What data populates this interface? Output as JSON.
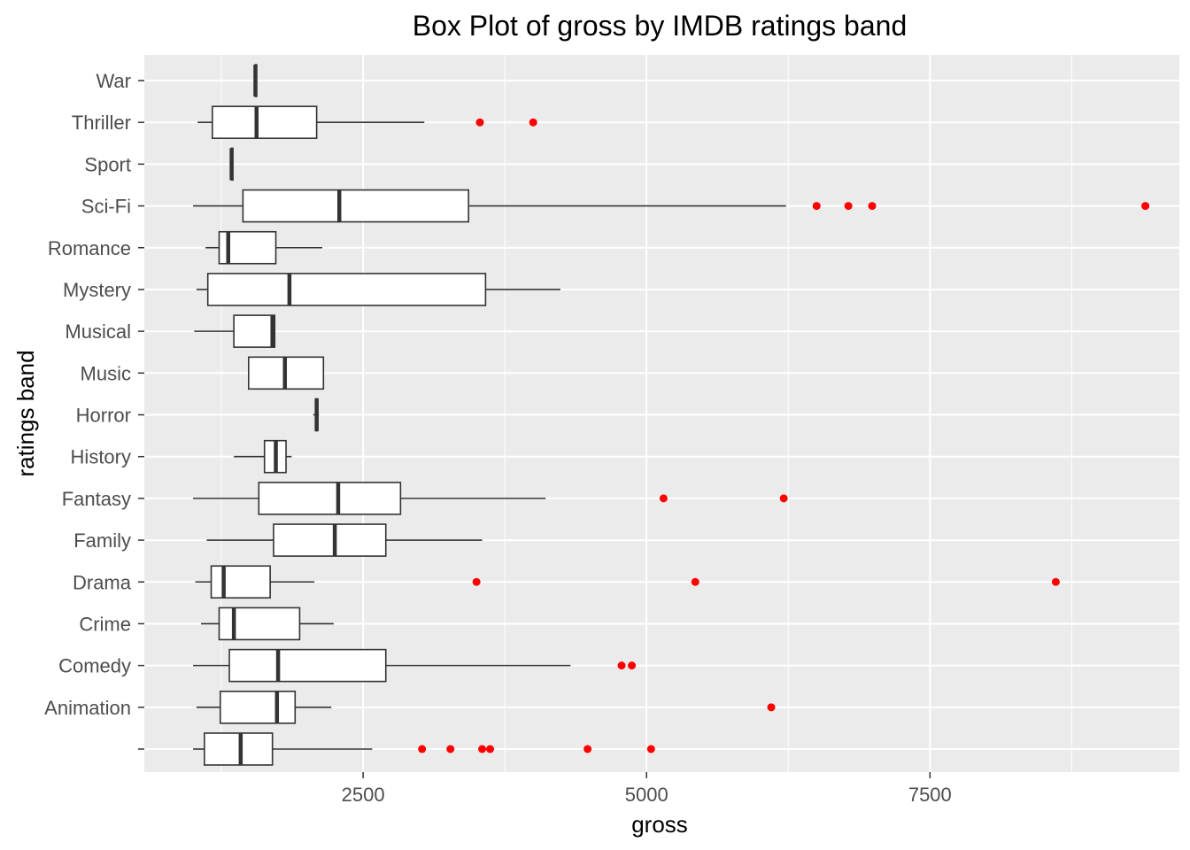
{
  "chart_data": {
    "type": "boxplot",
    "orientation": "horizontal",
    "title": "Box Plot of gross by IMDB ratings band",
    "xlabel": "gross",
    "ylabel": "ratings band",
    "xlim": [
      570,
      9700
    ],
    "x_ticks": [
      2500,
      5000,
      7500
    ],
    "x_tick_labels": [
      "2500",
      "5000",
      "7500"
    ],
    "grid": true,
    "background": "#ebebeb",
    "grid_color": "#ffffff",
    "box_color": "#333333",
    "box_fill": "#ffffff",
    "outlier_color": "#ff0000",
    "categories": [
      "",
      "Animation",
      "Comedy",
      "Crime",
      "Drama",
      "Family",
      "Fantasy",
      "History",
      "Horror",
      "Music",
      "Musical",
      "Mystery",
      "Romance",
      "Sci-Fi",
      "Sport",
      "Thriller",
      "War"
    ],
    "boxes": [
      {
        "category": "",
        "whisker_low": 1000,
        "q1": 1100,
        "median": 1420,
        "q3": 1700,
        "whisker_high": 2580,
        "outliers": [
          3020,
          3270,
          3550,
          3620,
          4480,
          5040
        ]
      },
      {
        "category": "Animation",
        "whisker_low": 1030,
        "q1": 1240,
        "median": 1740,
        "q3": 1900,
        "whisker_high": 2220,
        "outliers": [
          6100
        ]
      },
      {
        "category": "Comedy",
        "whisker_low": 1000,
        "q1": 1320,
        "median": 1750,
        "q3": 2700,
        "whisker_high": 4330,
        "outliers": [
          4780,
          4870
        ]
      },
      {
        "category": "Crime",
        "whisker_low": 1070,
        "q1": 1230,
        "median": 1360,
        "q3": 1940,
        "whisker_high": 2240,
        "outliers": []
      },
      {
        "category": "Drama",
        "whisker_low": 1020,
        "q1": 1160,
        "median": 1270,
        "q3": 1680,
        "whisker_high": 2070,
        "outliers": [
          3500,
          5430,
          8610
        ]
      },
      {
        "category": "Family",
        "whisker_low": 1120,
        "q1": 1710,
        "median": 2250,
        "q3": 2700,
        "whisker_high": 3550,
        "outliers": []
      },
      {
        "category": "Fantasy",
        "whisker_low": 1000,
        "q1": 1580,
        "median": 2280,
        "q3": 2830,
        "whisker_high": 4110,
        "outliers": [
          5150,
          6210
        ]
      },
      {
        "category": "History",
        "whisker_low": 1360,
        "q1": 1630,
        "median": 1730,
        "q3": 1820,
        "whisker_high": 1870,
        "outliers": []
      },
      {
        "category": "Horror",
        "whisker_low": 2060,
        "q1": 2080,
        "median": 2090,
        "q3": 2100,
        "whisker_high": 2110,
        "outliers": []
      },
      {
        "category": "Music",
        "whisker_low": 1490,
        "q1": 1490,
        "median": 1810,
        "q3": 2150,
        "whisker_high": 2150,
        "outliers": []
      },
      {
        "category": "Musical",
        "whisker_low": 1010,
        "q1": 1360,
        "median": 1700,
        "q3": 1720,
        "whisker_high": 1720,
        "outliers": []
      },
      {
        "category": "Mystery",
        "whisker_low": 1030,
        "q1": 1130,
        "median": 1850,
        "q3": 3580,
        "whisker_high": 4240,
        "outliers": []
      },
      {
        "category": "Romance",
        "whisker_low": 1110,
        "q1": 1230,
        "median": 1310,
        "q3": 1730,
        "whisker_high": 2140,
        "outliers": []
      },
      {
        "category": "Sci-Fi",
        "whisker_low": 1000,
        "q1": 1440,
        "median": 2290,
        "q3": 3430,
        "whisker_high": 6230,
        "outliers": [
          6500,
          6780,
          6990,
          9400
        ]
      },
      {
        "category": "Sport",
        "whisker_low": 1340,
        "q1": 1340,
        "median": 1340,
        "q3": 1350,
        "whisker_high": 1350,
        "outliers": []
      },
      {
        "category": "Thriller",
        "whisker_low": 1040,
        "q1": 1170,
        "median": 1560,
        "q3": 2090,
        "whisker_high": 3040,
        "outliers": [
          3530,
          4000
        ]
      },
      {
        "category": "War",
        "whisker_low": 1550,
        "q1": 1550,
        "median": 1550,
        "q3": 1560,
        "whisker_high": 1560,
        "outliers": []
      }
    ]
  }
}
